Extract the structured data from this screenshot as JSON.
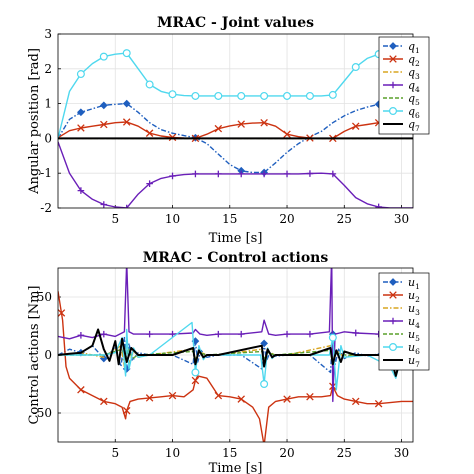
{
  "chart_data": [
    {
      "type": "line",
      "title": "MRAC - Joint values",
      "xlabel": "Time [s]",
      "ylabel": "Angular position [rad]",
      "xlim": [
        0,
        31
      ],
      "ylim": [
        -2,
        3
      ],
      "xticks": [
        5,
        10,
        15,
        20,
        25,
        30
      ],
      "yticks": [
        -2,
        -1,
        0,
        1,
        2,
        3
      ],
      "grid": true,
      "legend_position": "right",
      "series": [
        {
          "name": "q",
          "sub": "1",
          "color": "#1f5fbf",
          "dash": "5,2,1.5,2",
          "marker": "diamond",
          "x": [
            0,
            1,
            2,
            3,
            4,
            5,
            6,
            7,
            8,
            9,
            10,
            11,
            12,
            13,
            14,
            15,
            16,
            17,
            18,
            19,
            20,
            21,
            22,
            23,
            24,
            25,
            26,
            27,
            28,
            29,
            30,
            31
          ],
          "y": [
            0,
            0.55,
            0.75,
            0.85,
            0.95,
            0.98,
            1.0,
            0.75,
            0.45,
            0.25,
            0.15,
            0.08,
            0.02,
            -0.15,
            -0.45,
            -0.75,
            -0.93,
            -0.98,
            -0.98,
            -0.7,
            -0.4,
            -0.15,
            0.05,
            0.2,
            0.45,
            0.65,
            0.8,
            0.9,
            0.98,
            1.0,
            1.02,
            1.03
          ],
          "marker_x": [
            2,
            4,
            6,
            12,
            16,
            18,
            28
          ]
        },
        {
          "name": "q",
          "sub": "2",
          "color": "#cc3311",
          "dash": "",
          "marker": "x",
          "x": [
            0,
            1,
            2,
            3,
            4,
            5,
            6,
            7,
            8,
            9,
            10,
            11,
            12,
            13,
            14,
            15,
            16,
            17,
            18,
            19,
            20,
            21,
            22,
            23,
            24,
            25,
            26,
            27,
            28,
            29,
            30,
            31
          ],
          "y": [
            0.02,
            0.22,
            0.3,
            0.35,
            0.4,
            0.45,
            0.47,
            0.35,
            0.15,
            0.07,
            0.03,
            0.01,
            0.0,
            0.12,
            0.28,
            0.36,
            0.41,
            0.44,
            0.45,
            0.35,
            0.12,
            0.05,
            0.01,
            0.0,
            0.0,
            0.2,
            0.35,
            0.4,
            0.45,
            0.47,
            0.48,
            0.48
          ],
          "marker_x": [
            2,
            4,
            6,
            8,
            10,
            12,
            14,
            16,
            18,
            20,
            22,
            24,
            26,
            28
          ]
        },
        {
          "name": "q",
          "sub": "3",
          "color": "#d9a520",
          "dash": "5,2,1.5,2",
          "marker": "none",
          "x": [
            0,
            31
          ],
          "y": [
            0,
            0
          ],
          "marker_x": []
        },
        {
          "name": "q",
          "sub": "4",
          "color": "#6a1fb8",
          "dash": "",
          "marker": "plus",
          "x": [
            0,
            1,
            2,
            3,
            4,
            5,
            6,
            7,
            8,
            9,
            10,
            11,
            12,
            13,
            14,
            15,
            16,
            17,
            18,
            19,
            20,
            21,
            22,
            23,
            24,
            25,
            26,
            27,
            28,
            29,
            30,
            31
          ],
          "y": [
            -0.1,
            -1.0,
            -1.5,
            -1.75,
            -1.9,
            -1.97,
            -2.0,
            -1.6,
            -1.3,
            -1.15,
            -1.08,
            -1.04,
            -1.02,
            -1.02,
            -1.02,
            -1.02,
            -1.02,
            -1.02,
            -1.02,
            -1.02,
            -1.02,
            -1.02,
            -1.01,
            -1.0,
            -1.02,
            -1.35,
            -1.7,
            -1.88,
            -1.97,
            -2.0,
            -2.0,
            -2.0
          ],
          "marker_x": [
            2,
            4,
            6,
            8,
            10,
            12,
            14,
            16,
            18,
            20,
            22,
            24,
            28
          ]
        },
        {
          "name": "q",
          "sub": "5",
          "color": "#5aa02c",
          "dash": "4,2",
          "marker": "none",
          "x": [
            0,
            31
          ],
          "y": [
            0,
            0
          ],
          "marker_x": []
        },
        {
          "name": "q",
          "sub": "6",
          "color": "#4fd8ee",
          "dash": "",
          "marker": "circle",
          "x": [
            0,
            1,
            2,
            3,
            4,
            5,
            6,
            7,
            8,
            9,
            10,
            11,
            12,
            13,
            14,
            15,
            16,
            17,
            18,
            19,
            20,
            21,
            22,
            23,
            24,
            25,
            26,
            27,
            28,
            29,
            30,
            31
          ],
          "y": [
            0,
            1.35,
            1.85,
            2.15,
            2.35,
            2.42,
            2.45,
            2.0,
            1.55,
            1.35,
            1.27,
            1.23,
            1.22,
            1.22,
            1.22,
            1.22,
            1.22,
            1.22,
            1.22,
            1.22,
            1.22,
            1.22,
            1.22,
            1.22,
            1.25,
            1.65,
            2.05,
            2.3,
            2.42,
            2.46,
            2.47,
            2.48
          ],
          "marker_x": [
            2,
            4,
            6,
            8,
            10,
            12,
            14,
            16,
            18,
            20,
            22,
            24,
            26,
            28
          ]
        },
        {
          "name": "q",
          "sub": "7",
          "color": "#000000",
          "dash": "",
          "marker": "none",
          "width": 2,
          "x": [
            0,
            31
          ],
          "y": [
            0,
            0
          ],
          "marker_x": []
        }
      ]
    },
    {
      "type": "line",
      "title": "MRAC - Control actions",
      "xlabel": "Time [s]",
      "ylabel": "Control actions [Nm]",
      "xlim": [
        0,
        31
      ],
      "ylim": [
        -75,
        75
      ],
      "xticks": [
        5,
        10,
        15,
        20,
        25,
        30
      ],
      "yticks": [
        -50,
        0,
        50
      ],
      "grid": true,
      "legend_position": "right",
      "series": [
        {
          "name": "u",
          "sub": "1",
          "color": "#1f5fbf",
          "dash": "5,2,1.5,2",
          "marker": "diamond",
          "x": [
            0,
            1,
            2,
            3,
            4,
            5,
            5.5,
            5.8,
            6,
            6.2,
            6.5,
            7,
            8,
            10,
            11.8,
            12,
            12.2,
            12.5,
            13,
            14,
            16,
            17.8,
            18,
            18.2,
            18.5,
            19,
            20,
            22,
            23.8,
            24,
            24.2,
            24.5,
            25,
            26,
            27,
            28,
            29,
            30,
            31
          ],
          "y": [
            0,
            5,
            2,
            8,
            -3,
            6,
            -10,
            15,
            -12,
            10,
            -5,
            2,
            0,
            0,
            -8,
            12,
            -6,
            4,
            -2,
            0,
            0,
            -12,
            10,
            -5,
            2,
            -1,
            0,
            0,
            -15,
            18,
            -8,
            5,
            -3,
            2,
            -1,
            1,
            -2,
            0,
            0
          ],
          "marker_x": [
            2,
            4,
            6,
            12,
            18,
            24
          ]
        },
        {
          "name": "u",
          "sub": "2",
          "color": "#cc3311",
          "dash": "",
          "marker": "x",
          "x": [
            0,
            0.4,
            0.7,
            1,
            2,
            3,
            4,
            5,
            5.6,
            5.9,
            6,
            6.3,
            7,
            8,
            9,
            10,
            11,
            11.8,
            12,
            12.2,
            13,
            14,
            15,
            16,
            17,
            17.6,
            18,
            18.4,
            19,
            20,
            21,
            22,
            23,
            23.8,
            24,
            24.4,
            25,
            26,
            27,
            28,
            29,
            30,
            31
          ],
          "y": [
            55,
            30,
            -10,
            -20,
            -30,
            -35,
            -40,
            -42,
            -45,
            -55,
            -48,
            -40,
            -38,
            -37,
            -36,
            -35,
            -36,
            -30,
            -22,
            -18,
            -20,
            -35,
            -36,
            -38,
            -45,
            -55,
            -78,
            -45,
            -40,
            -38,
            -36,
            -36,
            -36,
            -35,
            -27,
            -35,
            -38,
            -40,
            -42,
            -42,
            -41,
            -40,
            -40
          ],
          "marker_x": [
            0.3,
            2,
            4,
            6,
            8,
            10,
            12,
            14,
            16,
            18,
            20,
            22,
            24,
            26,
            28
          ]
        },
        {
          "name": "u",
          "sub": "3",
          "color": "#d9a520",
          "dash": "5,2,1.5,2",
          "marker": "none",
          "x": [
            0,
            2,
            4,
            5.5,
            5.8,
            6,
            6.2,
            6.6,
            7,
            8,
            11.8,
            12,
            12.3,
            13,
            14,
            17.8,
            18,
            18.3,
            19,
            20,
            23.8,
            24,
            24.3,
            25,
            26,
            31
          ],
          "y": [
            0,
            2,
            -2,
            8,
            -10,
            12,
            -8,
            4,
            -2,
            0,
            5,
            -6,
            3,
            0,
            0,
            5,
            -6,
            3,
            0,
            0,
            8,
            -8,
            4,
            -2,
            0,
            0
          ],
          "marker_x": []
        },
        {
          "name": "u",
          "sub": "4",
          "color": "#6a1fb8",
          "dash": "",
          "marker": "plus",
          "x": [
            0,
            1,
            2,
            3,
            4,
            5,
            5.8,
            6,
            6.2,
            6.6,
            7,
            8,
            10,
            11.8,
            12,
            12.4,
            13,
            14,
            16,
            17.8,
            18,
            18.4,
            19,
            20,
            22,
            23.7,
            23.9,
            24,
            24.2,
            24.6,
            25,
            26,
            28,
            29,
            30,
            31
          ],
          "y": [
            16,
            14,
            17,
            15,
            18,
            16,
            20,
            80,
            20,
            18,
            18,
            18,
            18,
            19,
            22,
            18,
            17,
            18,
            18,
            20,
            30,
            18,
            17,
            18,
            18,
            20,
            85,
            -40,
            18,
            19,
            20,
            19,
            18,
            18,
            18,
            18
          ],
          "marker_x": [
            2,
            4,
            8,
            10,
            14,
            16,
            20,
            22,
            26,
            28
          ]
        },
        {
          "name": "u",
          "sub": "5",
          "color": "#5aa02c",
          "dash": "4,2",
          "marker": "none",
          "x": [
            0,
            4,
            5.6,
            5.9,
            6.1,
            6.5,
            7,
            11.8,
            12,
            12.3,
            13,
            17.8,
            18,
            18.3,
            19,
            23.8,
            24,
            24.3,
            25,
            31
          ],
          "y": [
            0,
            0,
            5,
            -5,
            6,
            -3,
            0,
            3,
            -3,
            2,
            0,
            3,
            -3,
            2,
            0,
            4,
            -4,
            2,
            0,
            0
          ],
          "marker_x": []
        },
        {
          "name": "u",
          "sub": "6",
          "color": "#4fd8ee",
          "dash": "",
          "marker": "circle",
          "x": [
            0,
            2,
            4,
            5,
            5.6,
            5.9,
            6,
            6.2,
            6.6,
            7,
            8,
            11.7,
            12,
            12.3,
            12.7,
            13,
            17.7,
            18,
            18.3,
            18.7,
            19,
            23.7,
            24,
            24.3,
            24.7,
            25,
            27,
            29,
            29.5,
            30,
            31
          ],
          "y": [
            0,
            0,
            0,
            2,
            15,
            -18,
            22,
            -12,
            6,
            -2,
            0,
            28,
            -15,
            8,
            -4,
            0,
            0,
            -25,
            6,
            -3,
            0,
            0,
            15,
            -30,
            8,
            -2,
            0,
            -10,
            -20,
            0,
            0
          ],
          "marker_x": [
            12,
            18,
            24,
            30
          ]
        },
        {
          "name": "u",
          "sub": "7",
          "color": "#000000",
          "dash": "",
          "marker": "none",
          "width": 2,
          "x": [
            0,
            1,
            2,
            3,
            3.5,
            4,
            4.5,
            5,
            5.3,
            5.6,
            6,
            6.4,
            7,
            8,
            10,
            11.8,
            12,
            12.3,
            12.7,
            13,
            14,
            17.8,
            18,
            18.3,
            18.7,
            19,
            20,
            22,
            23.8,
            24,
            24.3,
            24.7,
            25,
            26,
            27,
            28,
            29,
            29.5,
            30,
            31
          ],
          "y": [
            0,
            1,
            2,
            8,
            22,
            5,
            -5,
            12,
            -8,
            14,
            -6,
            6,
            0,
            0,
            0,
            6,
            -8,
            4,
            -2,
            0,
            0,
            8,
            -10,
            5,
            -2,
            0,
            0,
            0,
            6,
            -8,
            4,
            -6,
            3,
            0,
            0,
            0,
            0,
            -18,
            0,
            0
          ],
          "marker_x": []
        }
      ]
    }
  ]
}
